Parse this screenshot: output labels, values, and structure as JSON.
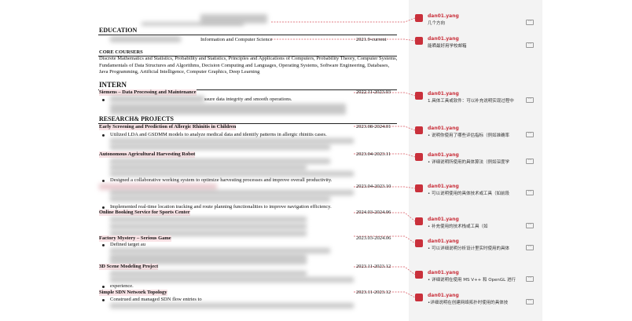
{
  "document": {
    "education_heading": "EDUCATION",
    "major": "Information and Computer Science",
    "education_date": "2021.9-current",
    "core_heading": "CORE COURSERS",
    "core_text": "Discrete Mathematics and Statistics, Probability and Statistics, Principles and Applications of Computers, Probability Theory, Computer Systems, Fundamentals of Data Structures and Algorithms, Decision Computing and Languages, Operating Systems, Software Engineering, Databases, Java Programming, Artificial Intelligence, Computer Graphics, Deep Learning",
    "intern_heading": "INTERN",
    "intern_title": "Siemens – Data Processing and Maintenance",
    "intern_date": "2022.11-2023.03",
    "intern_bullet": "ssure data integrity and smooth operations.",
    "research_heading": "RESEARCH& PROJECTS",
    "projects": [
      {
        "title": "Early Screening and Prediction of Allergic Rhinitis in Children",
        "date": "2023.08-2024.01",
        "bullet": "Utilized LDA and GSDMM models to analyze medical data and identify patterns in allergic rhinitis cases."
      },
      {
        "title": "Autonomous Agricultural Harvesting Robot",
        "date": "2023.04-2023.11",
        "bullet": "Designed a collaborative working system to optimize harvesting processes and improve overall productivity."
      },
      {
        "date": "2023.04-2023.10",
        "bullet": "Implemented real-time location tracking and route planning functionalities to improve navigation efficiency."
      },
      {
        "title": "Online Booking Service for Sports Center",
        "date": "2024.03-2024.06"
      },
      {
        "title": "Factory Mystery – Serious Game",
        "date": "2023.03-2024.06",
        "bullet": "Defined target au"
      },
      {
        "title": "3D Scene Modeling Project",
        "date": "2023.11-2023.12",
        "bullet": "experience."
      },
      {
        "title": "Simple SDN Network Topology",
        "date": "2023.11-2023.12",
        "bullet": "Construed and managed SDN flow entries to"
      }
    ]
  },
  "comments": [
    {
      "author": "dan01.yang",
      "text": "几个方向"
    },
    {
      "author": "dan01.yang",
      "text": "能晒最好用学校邮箱"
    },
    {
      "author": "dan01.yang",
      "text": "1.具体工具或软件：可以补充说明实现过程中"
    },
    {
      "author": "dan01.yang",
      "text": "• 说明你使用了哪些评估指标（例如准确率"
    },
    {
      "author": "dan01.yang",
      "text": "• 详细说明所使用的具体算法（例如深度学"
    },
    {
      "author": "dan01.yang",
      "text": "• 可以说明使用的具体技术或工具（如前段"
    },
    {
      "author": "dan01.yang",
      "text": "• 补充使用的技术栈或工具（如"
    },
    {
      "author": "dan01.yang",
      "text": "• 可以详细说明分析设计里实时使用的具体"
    },
    {
      "author": "dan01.yang",
      "text": "• 详细说明在使用 MS V++ 和 OpenGL 进行"
    },
    {
      "author": "dan01.yang",
      "text": "•详细说明在创建网络拓扑时使用的具体技"
    }
  ]
}
